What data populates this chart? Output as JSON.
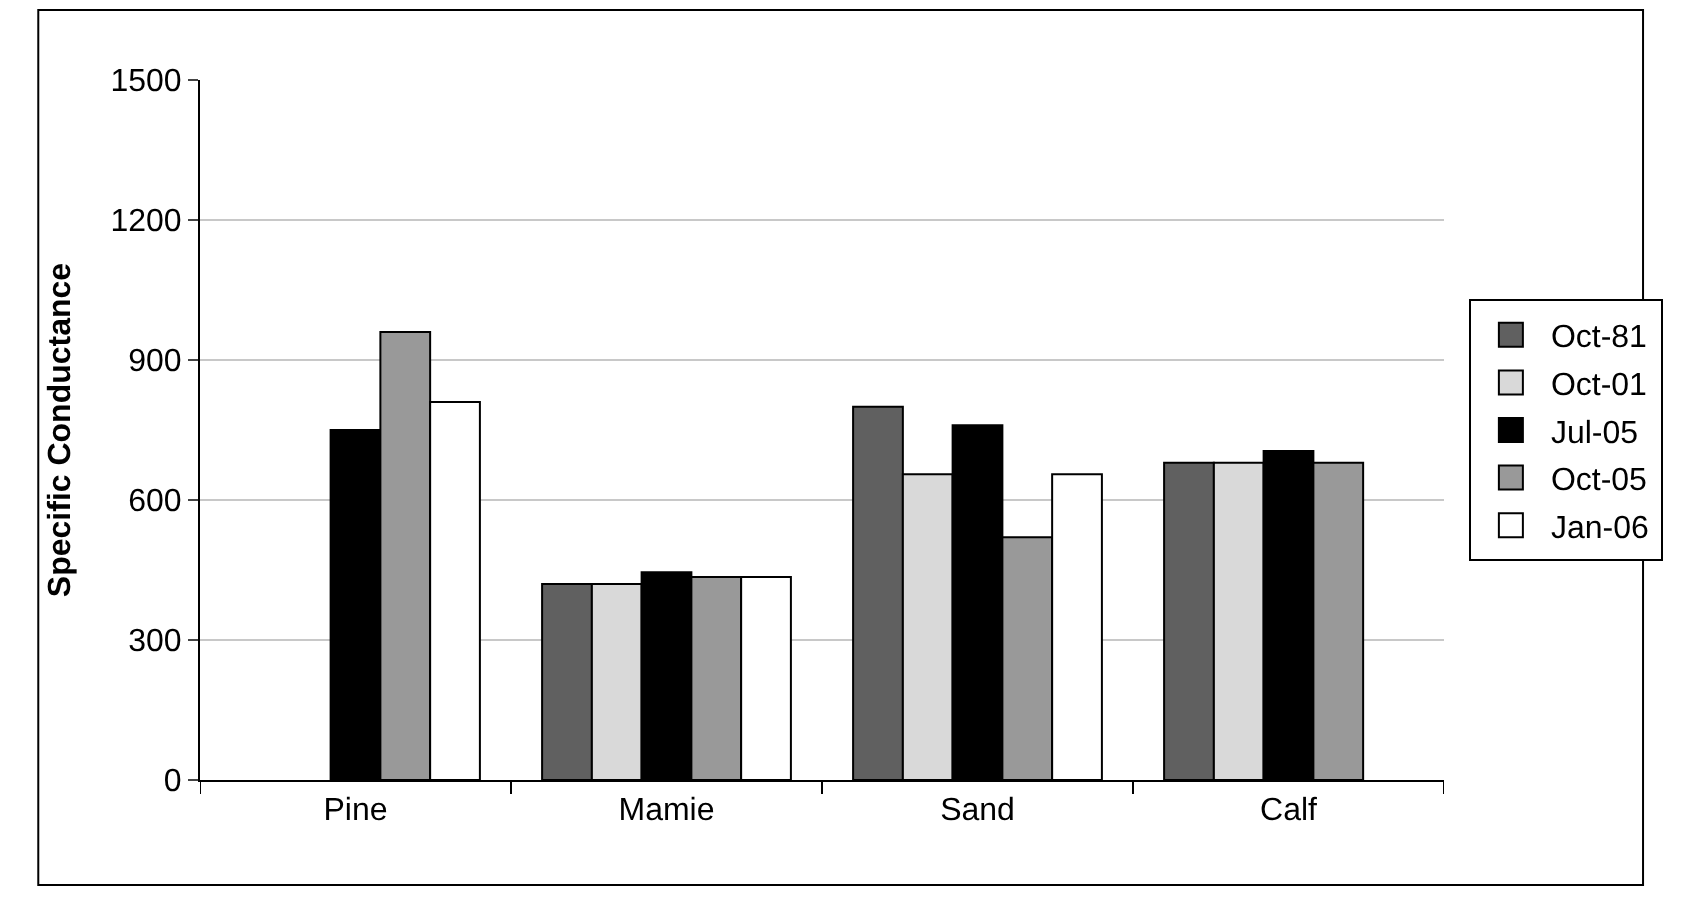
{
  "chart_data": {
    "type": "bar",
    "ylabel": "Specific Conductance",
    "categories": [
      "Pine",
      "Mamie",
      "Sand",
      "Calf"
    ],
    "series": [
      {
        "name": "Oct-81",
        "color": "#606060",
        "values": [
          null,
          420,
          800,
          680
        ]
      },
      {
        "name": "Oct-01",
        "color": "#d9d9d9",
        "values": [
          null,
          420,
          655,
          680
        ]
      },
      {
        "name": "Jul-05",
        "color": "#000000",
        "values": [
          750,
          445,
          760,
          705
        ]
      },
      {
        "name": "Oct-05",
        "color": "#999999",
        "values": [
          960,
          435,
          520,
          680
        ]
      },
      {
        "name": "Jan-06",
        "color": "#ffffff",
        "values": [
          810,
          435,
          655,
          null
        ]
      }
    ],
    "ylim": [
      0,
      1500
    ],
    "yticks": [
      0,
      300,
      600,
      900,
      1200,
      1500
    ],
    "grid": "y",
    "legend": "right"
  }
}
